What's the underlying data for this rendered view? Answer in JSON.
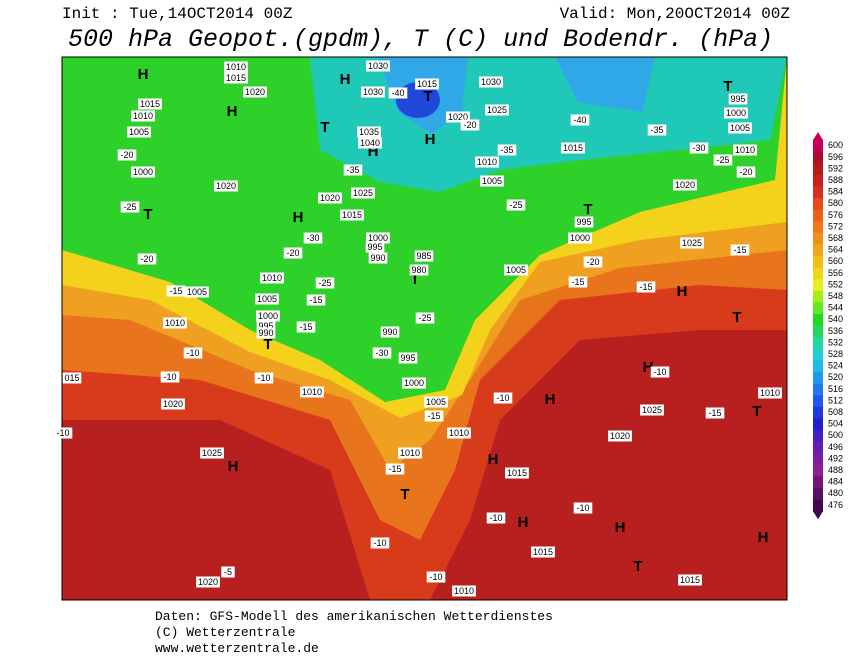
{
  "header": {
    "init": "Init : Tue,14OCT2014 00Z",
    "valid": "Valid: Mon,20OCT2014 00Z",
    "title": "500 hPa Geopot.(gpdm), T (C) und Bodendr. (hPa)"
  },
  "legend": [
    {
      "label": "600",
      "color": "#c8005a"
    },
    {
      "label": "596",
      "color": "#a81030"
    },
    {
      "label": "592",
      "color": "#b81818"
    },
    {
      "label": "588",
      "color": "#c82020"
    },
    {
      "label": "584",
      "color": "#d83020"
    },
    {
      "label": "580",
      "color": "#e84818"
    },
    {
      "label": "576",
      "color": "#ee6018"
    },
    {
      "label": "572",
      "color": "#f07818"
    },
    {
      "label": "568",
      "color": "#f09018"
    },
    {
      "label": "564",
      "color": "#f0a818"
    },
    {
      "label": "560",
      "color": "#f0c018"
    },
    {
      "label": "556",
      "color": "#f0d818"
    },
    {
      "label": "552",
      "color": "#e8f018"
    },
    {
      "label": "548",
      "color": "#a0f018"
    },
    {
      "label": "544",
      "color": "#60e820"
    },
    {
      "label": "540",
      "color": "#20d820"
    },
    {
      "label": "536",
      "color": "#20d860"
    },
    {
      "label": "532",
      "color": "#20d8a0"
    },
    {
      "label": "528",
      "color": "#20d0d0"
    },
    {
      "label": "524",
      "color": "#20b8e8"
    },
    {
      "label": "520",
      "color": "#2098f0"
    },
    {
      "label": "516",
      "color": "#2078f0"
    },
    {
      "label": "512",
      "color": "#2058f0"
    },
    {
      "label": "508",
      "color": "#2038e0"
    },
    {
      "label": "504",
      "color": "#2020d0"
    },
    {
      "label": "500",
      "color": "#4020c0"
    },
    {
      "label": "496",
      "color": "#6020b0"
    },
    {
      "label": "492",
      "color": "#7820a0"
    },
    {
      "label": "488",
      "color": "#8c2090"
    },
    {
      "label": "484",
      "color": "#701870"
    },
    {
      "label": "480",
      "color": "#581060"
    },
    {
      "label": "476",
      "color": "#400850"
    }
  ],
  "centers": [
    "H",
    "H",
    "H",
    "T",
    "H",
    "H",
    "T",
    "T",
    "H",
    "T",
    "T",
    "T",
    "H",
    "T",
    "H",
    "T",
    "H",
    "H",
    "T",
    "H",
    "T",
    "H",
    "H",
    "T",
    "H"
  ],
  "labels": [
    "1010",
    "1015",
    "1020",
    "1030",
    "1030",
    "1015",
    "1025",
    "1030",
    "1035",
    "1040",
    "1020",
    "1010",
    "1015",
    "1005",
    "995",
    "1000",
    "1005",
    "1010",
    "1015",
    "1010",
    "1005",
    "1000",
    "1020",
    "1020",
    "1015",
    "1025",
    "1000",
    "995",
    "990",
    "985",
    "980",
    "995",
    "1000",
    "1020",
    "1025",
    "1005",
    "1010",
    "1005",
    "1005",
    "1000",
    "995",
    "990",
    "1010",
    "990",
    "995",
    "1000",
    "1005",
    "1010",
    "1020",
    "015",
    "1025",
    "1010",
    "1010",
    "1015",
    "1020",
    "1025",
    "1010",
    "1015",
    "1010",
    "1015",
    "1020",
    "-20",
    "-25",
    "-20",
    "-15",
    "-20",
    "-30",
    "-25",
    "-15",
    "-15",
    "-10",
    "-10",
    "-10",
    "-30",
    "-25",
    "-40",
    "-40",
    "-35",
    "-35",
    "-30",
    "-25",
    "-20",
    "-25",
    "-20",
    "-15",
    "-15",
    "-15",
    "-10",
    "-10",
    "-15",
    "-15",
    "-15",
    "-10",
    "-10",
    "-10",
    "-10",
    "-5",
    "-10",
    "-35",
    "-20"
  ],
  "footer": [
    "Daten: GFS-Modell des amerikanischen Wetterdienstes",
    "(C) Wetterzentrale",
    "www.wetterzentrale.de"
  ]
}
